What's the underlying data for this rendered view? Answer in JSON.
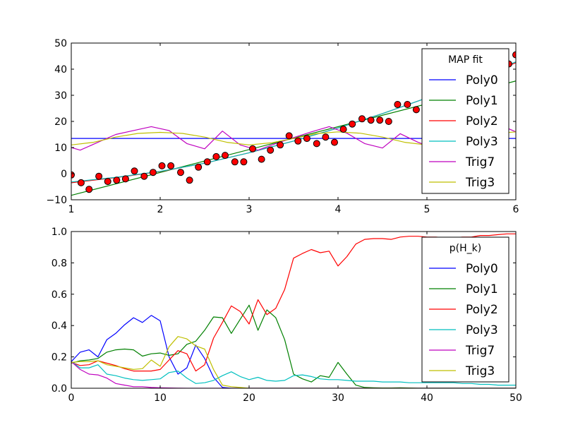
{
  "colors": {
    "Poly0": "#0000ff",
    "Poly1": "#008000",
    "Poly2": "#ff0000",
    "Poly3": "#00bfbf",
    "Trig7": "#bf00bf",
    "Trig3": "#bfbf00",
    "points": "#ff0000"
  },
  "chart_data": [
    {
      "type": "line",
      "title": "",
      "xlabel": "",
      "ylabel": "",
      "xlim": [
        1,
        6
      ],
      "ylim": [
        -10,
        50
      ],
      "xticks": [
        1,
        2,
        3,
        4,
        5,
        6
      ],
      "yticks": [
        -10,
        0,
        10,
        20,
        30,
        40,
        50
      ],
      "legend": {
        "title": "MAP fit",
        "placement": "right"
      },
      "series": [
        {
          "name": "Poly0",
          "x": [
            1,
            6
          ],
          "y": [
            13.5,
            13.5
          ]
        },
        {
          "name": "Poly1",
          "x": [
            1,
            6
          ],
          "y": [
            -8.3,
            35.5
          ]
        },
        {
          "name": "Poly2",
          "x": [
            1,
            1.5,
            2,
            2.5,
            3,
            3.5,
            4,
            4.5,
            5,
            5.5,
            6
          ],
          "y": [
            -3.5,
            -1.5,
            0.8,
            4,
            8,
            12.5,
            17.5,
            23,
            29,
            35.5,
            42.5
          ]
        },
        {
          "name": "Poly3",
          "x": [
            1,
            1.5,
            2,
            2.5,
            3,
            3.5,
            4,
            4.5,
            5,
            5.5,
            6
          ],
          "y": [
            -3.2,
            -1.4,
            0.9,
            4,
            8,
            12.5,
            17.5,
            23,
            29,
            35.6,
            42.8
          ]
        },
        {
          "name": "Trig7",
          "x": [
            1,
            1.1,
            1.3,
            1.5,
            1.7,
            1.9,
            2.1,
            2.3,
            2.5,
            2.7,
            2.9,
            3.1,
            3.3,
            3.5,
            3.7,
            3.9,
            4.1,
            4.3,
            4.5,
            4.7,
            4.9,
            5.1,
            5.3,
            5.5,
            5.7,
            5.9,
            6
          ],
          "y": [
            10,
            9,
            12,
            15,
            16.5,
            18,
            16.5,
            11.5,
            9.5,
            16.3,
            11,
            9,
            11.5,
            13.8,
            16,
            18,
            15.5,
            11.5,
            9.8,
            15.3,
            12,
            9.5,
            12,
            15,
            16.5,
            17.5,
            16
          ]
        },
        {
          "name": "Trig3",
          "x": [
            1,
            1.25,
            1.5,
            1.75,
            2,
            2.25,
            2.5,
            2.75,
            3,
            3.25,
            3.5,
            3.75,
            4,
            4.25,
            4.5,
            4.75,
            5,
            5.25,
            5.5,
            5.75,
            6
          ],
          "y": [
            11,
            12,
            14,
            15.4,
            15.8,
            15.4,
            14,
            12,
            11,
            11.8,
            13.5,
            15.3,
            16,
            15.5,
            14,
            12,
            11,
            11.5,
            13.5,
            15.3,
            16
          ]
        }
      ],
      "points": {
        "x": [
          1,
          1.11,
          1.2,
          1.31,
          1.41,
          1.51,
          1.61,
          1.71,
          1.82,
          1.92,
          2.02,
          2.12,
          2.23,
          2.33,
          2.43,
          2.53,
          2.63,
          2.73,
          2.84,
          2.94,
          3.04,
          3.14,
          3.24,
          3.35,
          3.45,
          3.55,
          3.65,
          3.76,
          3.86,
          3.96,
          4.06,
          4.16,
          4.27,
          4.37,
          4.47,
          4.57,
          4.67,
          4.78,
          4.88,
          5.92,
          6.0
        ],
        "y": [
          -0.5,
          -3.5,
          -6,
          -1,
          -3,
          -2.5,
          -2,
          1,
          -1,
          0.5,
          3,
          3,
          0.5,
          -2.5,
          2.5,
          4.5,
          6.5,
          7,
          4.5,
          4.5,
          9.5,
          5.5,
          9,
          11,
          14.5,
          12.5,
          13.5,
          11.5,
          14,
          12,
          17,
          19,
          21,
          20.5,
          20.5,
          20,
          26.5,
          26.5,
          24.5,
          42,
          45.5
        ]
      }
    },
    {
      "type": "line",
      "title": "",
      "xlabel": "",
      "ylabel": "",
      "xlim": [
        0,
        50
      ],
      "ylim": [
        0.0,
        1.0
      ],
      "xticks": [
        0,
        10,
        20,
        30,
        40,
        50
      ],
      "yticks": [
        0.0,
        0.2,
        0.4,
        0.6,
        0.8,
        1.0
      ],
      "legend": {
        "title": "p(H_k)",
        "placement": "right"
      },
      "series": [
        {
          "name": "Poly0",
          "x": [
            0,
            1,
            2,
            3,
            4,
            5,
            6,
            7,
            8,
            9,
            10,
            11,
            12,
            13,
            14,
            15,
            16,
            17,
            18,
            50
          ],
          "y": [
            0.17,
            0.23,
            0.245,
            0.2,
            0.31,
            0.35,
            0.405,
            0.45,
            0.42,
            0.465,
            0.43,
            0.2,
            0.09,
            0.13,
            0.275,
            0.19,
            0.07,
            0.005,
            0,
            0
          ]
        },
        {
          "name": "Poly1",
          "x": [
            0,
            1,
            2,
            3,
            4,
            5,
            6,
            7,
            8,
            9,
            10,
            11,
            12,
            13,
            14,
            15,
            16,
            17,
            18,
            19,
            20,
            21,
            22,
            23,
            24,
            25,
            26,
            27,
            28,
            29,
            30,
            31,
            32,
            33,
            34,
            35,
            36,
            37,
            38,
            39,
            40,
            41,
            42,
            43,
            44,
            45,
            46,
            47,
            48,
            49,
            50
          ],
          "y": [
            0.16,
            0.175,
            0.18,
            0.19,
            0.23,
            0.245,
            0.25,
            0.245,
            0.205,
            0.22,
            0.225,
            0.21,
            0.22,
            0.28,
            0.3,
            0.37,
            0.455,
            0.45,
            0.35,
            0.44,
            0.53,
            0.37,
            0.5,
            0.45,
            0.31,
            0.09,
            0.06,
            0.04,
            0.08,
            0.07,
            0.165,
            0.09,
            0.02,
            0.005,
            0.003,
            0.002,
            0.002,
            0.003,
            0.002,
            0,
            0,
            0,
            0,
            0,
            0,
            0,
            0,
            0,
            0,
            0,
            0
          ]
        },
        {
          "name": "Poly2",
          "x": [
            0,
            1,
            2,
            3,
            4,
            5,
            6,
            7,
            8,
            9,
            10,
            11,
            12,
            13,
            14,
            15,
            16,
            17,
            18,
            19,
            20,
            21,
            22,
            23,
            24,
            25,
            26,
            27,
            28,
            29,
            30,
            31,
            32,
            33,
            34,
            35,
            36,
            37,
            38,
            39,
            40,
            41,
            42,
            43,
            44,
            45,
            46,
            47,
            48,
            49,
            50
          ],
          "y": [
            0.165,
            0.145,
            0.15,
            0.175,
            0.16,
            0.145,
            0.125,
            0.11,
            0.11,
            0.11,
            0.12,
            0.18,
            0.24,
            0.22,
            0.11,
            0.15,
            0.32,
            0.42,
            0.525,
            0.49,
            0.41,
            0.565,
            0.47,
            0.51,
            0.63,
            0.83,
            0.86,
            0.885,
            0.865,
            0.875,
            0.78,
            0.84,
            0.92,
            0.95,
            0.955,
            0.955,
            0.95,
            0.965,
            0.97,
            0.97,
            0.965,
            0.965,
            0.96,
            0.96,
            0.965,
            0.965,
            0.975,
            0.975,
            0.98,
            0.985,
            0.985
          ]
        },
        {
          "name": "Poly3",
          "x": [
            0,
            1,
            2,
            3,
            4,
            5,
            6,
            7,
            8,
            9,
            10,
            11,
            12,
            13,
            14,
            15,
            16,
            17,
            18,
            19,
            20,
            21,
            22,
            23,
            24,
            25,
            26,
            27,
            28,
            29,
            30,
            31,
            32,
            33,
            34,
            35,
            36,
            37,
            38,
            39,
            40,
            41,
            42,
            43,
            44,
            45,
            46,
            47,
            48,
            49,
            50
          ],
          "y": [
            0.17,
            0.13,
            0.13,
            0.15,
            0.09,
            0.08,
            0.065,
            0.055,
            0.05,
            0.055,
            0.06,
            0.1,
            0.11,
            0.065,
            0.03,
            0.035,
            0.05,
            0.08,
            0.105,
            0.075,
            0.055,
            0.07,
            0.05,
            0.045,
            0.05,
            0.08,
            0.085,
            0.075,
            0.06,
            0.055,
            0.055,
            0.05,
            0.045,
            0.045,
            0.045,
            0.04,
            0.04,
            0.04,
            0.035,
            0.035,
            0.035,
            0.035,
            0.035,
            0.035,
            0.03,
            0.03,
            0.025,
            0.025,
            0.02,
            0.02,
            0.02
          ]
        },
        {
          "name": "Trig7",
          "x": [
            0,
            1,
            2,
            3,
            4,
            5,
            6,
            7,
            8,
            9,
            10,
            11,
            12,
            13,
            50
          ],
          "y": [
            0.17,
            0.12,
            0.09,
            0.085,
            0.065,
            0.03,
            0.02,
            0.01,
            0.01,
            0.005,
            0.003,
            0.002,
            0.001,
            0,
            0
          ]
        },
        {
          "name": "Trig3",
          "x": [
            0,
            1,
            2,
            3,
            4,
            5,
            6,
            7,
            8,
            9,
            10,
            11,
            12,
            13,
            14,
            15,
            16,
            17,
            18,
            19,
            20,
            50
          ],
          "y": [
            0.165,
            0.17,
            0.17,
            0.175,
            0.15,
            0.14,
            0.13,
            0.12,
            0.125,
            0.18,
            0.14,
            0.265,
            0.33,
            0.315,
            0.27,
            0.25,
            0.12,
            0.02,
            0.01,
            0.005,
            0,
            0
          ]
        }
      ]
    }
  ]
}
